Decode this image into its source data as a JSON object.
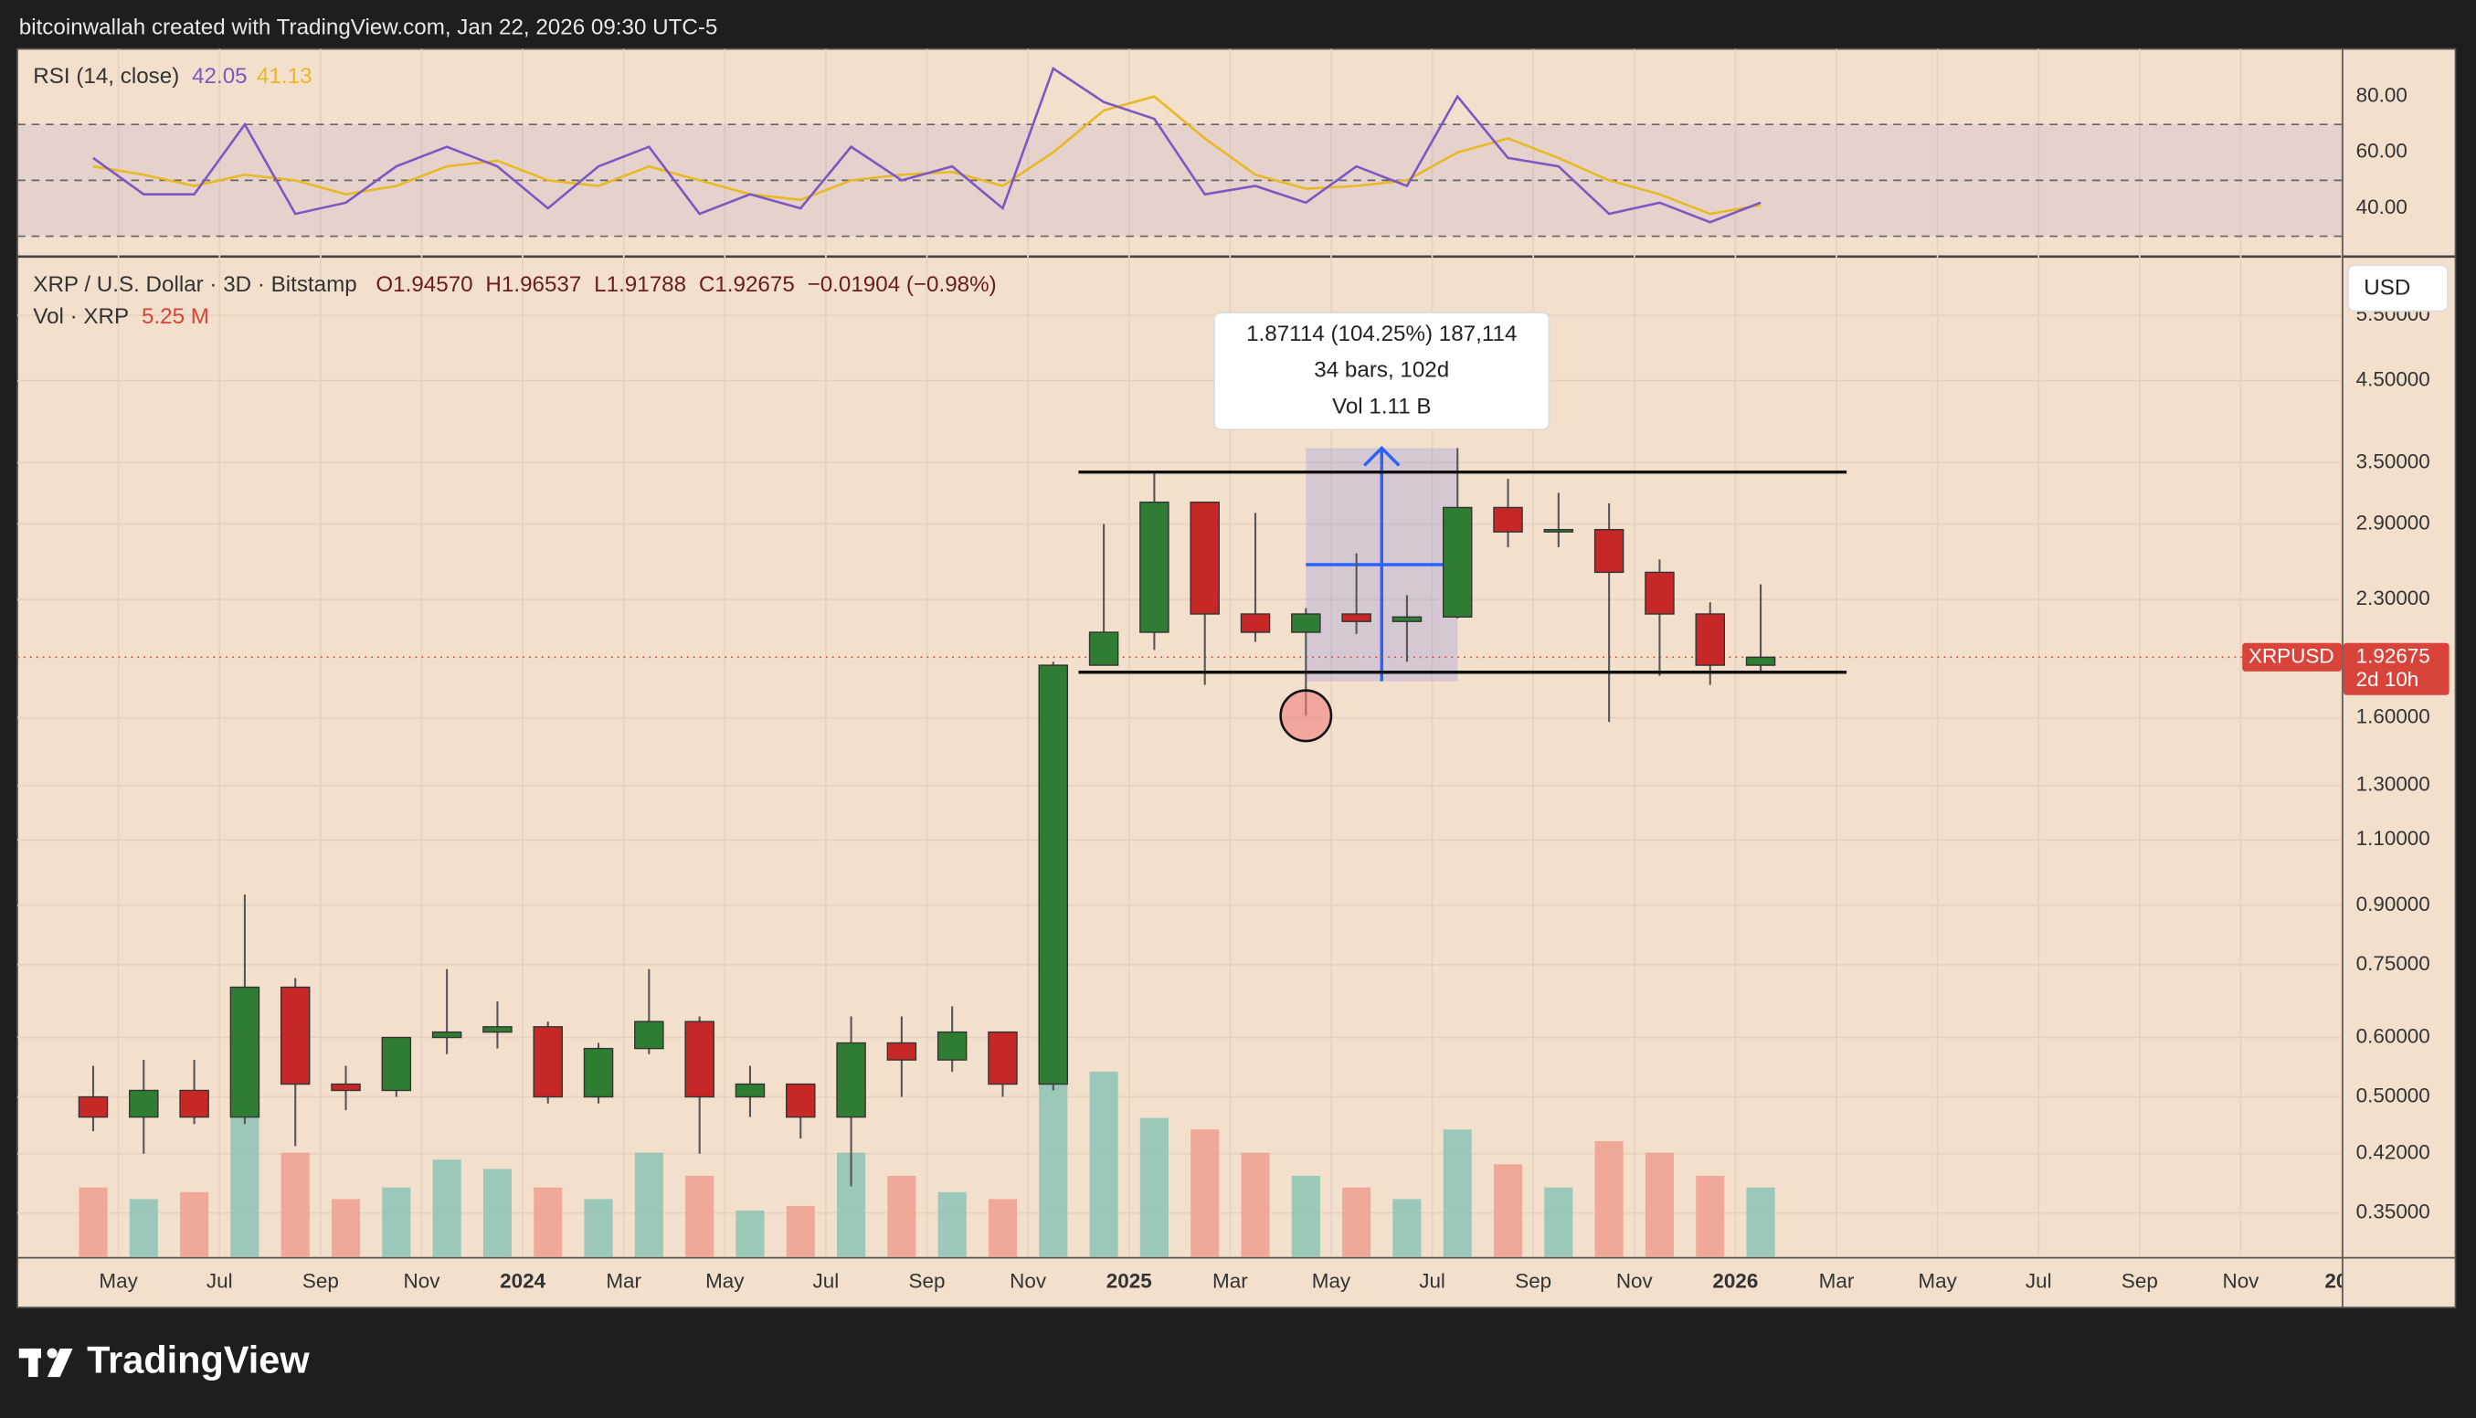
{
  "header": {
    "text": "bitcoinwallah created with TradingView.com, Jan 22, 2026 09:30 UTC-5"
  },
  "footer": {
    "brand": "TradingView"
  },
  "chart_data": [
    {
      "type": "candlestick",
      "title": "XRP / U.S. Dollar · 3D · Bitstamp",
      "ohlc_legend": [
        "O1.94570",
        "H1.96537",
        "L1.91788",
        "C1.92675",
        "−0.01904 (−0.98%)"
      ],
      "volume_label": "Vol · XRP",
      "volume_value": "5.25 M",
      "currency": "USD",
      "symbol": "XRPUSD",
      "last_price": {
        "value": 1.92675,
        "label": "1.92675"
      },
      "countdown": "2d 10h",
      "log_scale": true,
      "grid": true,
      "up_color": "#2e7d32",
      "down_color": "#c62828",
      "volume_up_color": "#8cc4b4",
      "volume_down_color": "#f0a08e",
      "x": [
        "2023-04",
        "2023-05",
        "2023-06",
        "2023-07",
        "2023-08",
        "2023-09",
        "2023-10",
        "2023-11",
        "2023-12",
        "2024-01",
        "2024-02",
        "2024-03",
        "2024-04",
        "2024-05",
        "2024-06",
        "2024-07",
        "2024-08",
        "2024-09",
        "2024-10",
        "2024-11",
        "2024-12",
        "2025-01",
        "2025-02",
        "2025-03",
        "2025-04",
        "2025-05",
        "2025-06",
        "2025-07",
        "2025-08",
        "2025-09",
        "2025-10",
        "2025-11",
        "2025-12",
        "2026-01"
      ],
      "open": [
        0.5,
        0.47,
        0.51,
        0.47,
        0.7,
        0.52,
        0.51,
        0.6,
        0.61,
        0.62,
        0.5,
        0.58,
        0.63,
        0.5,
        0.52,
        0.47,
        0.59,
        0.56,
        0.61,
        0.52,
        1.88,
        2.08,
        3.1,
        2.2,
        2.08,
        2.2,
        2.15,
        2.18,
        3.05,
        2.83,
        2.85,
        2.5,
        2.2,
        1.88
      ],
      "high": [
        0.55,
        0.56,
        0.56,
        0.93,
        0.72,
        0.55,
        0.6,
        0.74,
        0.67,
        0.63,
        0.59,
        0.74,
        0.64,
        0.55,
        0.52,
        0.64,
        0.64,
        0.66,
        0.61,
        1.9,
        2.9,
        3.4,
        3.1,
        3.0,
        2.24,
        2.65,
        2.33,
        3.66,
        3.33,
        3.19,
        3.09,
        2.6,
        2.28,
        2.41
      ],
      "low": [
        0.45,
        0.42,
        0.46,
        0.46,
        0.43,
        0.48,
        0.5,
        0.57,
        0.58,
        0.49,
        0.49,
        0.57,
        0.42,
        0.47,
        0.44,
        0.38,
        0.5,
        0.54,
        0.5,
        0.51,
        1.88,
        1.97,
        1.77,
        2.02,
        1.61,
        2.07,
        1.9,
        2.17,
        2.7,
        2.7,
        1.58,
        1.82,
        1.77,
        1.84
      ],
      "close": [
        0.47,
        0.51,
        0.47,
        0.7,
        0.52,
        0.51,
        0.6,
        0.61,
        0.62,
        0.5,
        0.58,
        0.63,
        0.5,
        0.52,
        0.47,
        0.59,
        0.56,
        0.61,
        0.52,
        1.88,
        2.08,
        3.1,
        2.2,
        2.08,
        2.2,
        2.15,
        2.18,
        3.05,
        2.83,
        2.85,
        2.5,
        2.2,
        1.88,
        1.92675
      ],
      "volume": [
        300,
        250,
        280,
        700,
        450,
        250,
        300,
        420,
        380,
        300,
        250,
        450,
        350,
        200,
        220,
        450,
        350,
        280,
        250,
        950,
        800,
        600,
        550,
        450,
        350,
        300,
        250,
        550,
        400,
        300,
        500,
        450,
        350,
        300
      ],
      "volume_ylim": [
        0,
        1200
      ],
      "xlim": [
        "2023-03",
        "2027-01"
      ],
      "xticks": [
        {
          "value": "2023-05",
          "label": "May"
        },
        {
          "value": "2023-07",
          "label": "Jul"
        },
        {
          "value": "2023-09",
          "label": "Sep"
        },
        {
          "value": "2023-11",
          "label": "Nov"
        },
        {
          "value": "2024-01",
          "label": "2024"
        },
        {
          "value": "2024-03",
          "label": "Mar"
        },
        {
          "value": "2024-05",
          "label": "May"
        },
        {
          "value": "2024-07",
          "label": "Jul"
        },
        {
          "value": "2024-09",
          "label": "Sep"
        },
        {
          "value": "2024-11",
          "label": "Nov"
        },
        {
          "value": "2025-01",
          "label": "2025"
        },
        {
          "value": "2025-03",
          "label": "Mar"
        },
        {
          "value": "2025-05",
          "label": "May"
        },
        {
          "value": "2025-07",
          "label": "Jul"
        },
        {
          "value": "2025-09",
          "label": "Sep"
        },
        {
          "value": "2025-11",
          "label": "Nov"
        },
        {
          "value": "2026-01",
          "label": "2026"
        },
        {
          "value": "2026-03",
          "label": "Mar"
        },
        {
          "value": "2026-05",
          "label": "May"
        },
        {
          "value": "2026-07",
          "label": "Jul"
        },
        {
          "value": "2026-09",
          "label": "Sep"
        },
        {
          "value": "2026-11",
          "label": "Nov"
        },
        {
          "value": "2027-01",
          "label": "202"
        }
      ],
      "ylim": [
        0.306,
        6.57
      ],
      "yticks": [
        {
          "value": 5.5,
          "label": "5.50000"
        },
        {
          "value": 4.5,
          "label": "4.50000"
        },
        {
          "value": 3.5,
          "label": "3.50000"
        },
        {
          "value": 2.9,
          "label": "2.90000"
        },
        {
          "value": 2.3,
          "label": "2.30000"
        },
        {
          "value": 1.6,
          "label": "1.60000"
        },
        {
          "value": 1.3,
          "label": "1.30000"
        },
        {
          "value": 1.1,
          "label": "1.10000"
        },
        {
          "value": 0.9,
          "label": "0.90000"
        },
        {
          "value": 0.75,
          "label": "0.75000"
        },
        {
          "value": 0.6,
          "label": "0.60000"
        },
        {
          "value": 0.5,
          "label": "0.50000"
        },
        {
          "value": 0.42,
          "label": "0.42000"
        },
        {
          "value": 0.35,
          "label": "0.35000"
        }
      ],
      "levels": [
        {
          "value": 3.4,
          "from": "2024-12",
          "to": "2026-03"
        },
        {
          "value": 1.84,
          "from": "2024-12",
          "to": "2026-03"
        }
      ],
      "measure": {
        "from": "2025-04",
        "to": "2025-07",
        "low": 1.79,
        "high": 3.66,
        "lines": [
          "1.87114 (104.25%) 187,114",
          "34 bars, 102d",
          "Vol 1.11 B"
        ]
      },
      "marker": {
        "x": "2025-04",
        "value": 1.61
      }
    },
    {
      "type": "line",
      "title": "RSI (14, close)",
      "x": [
        "2023-04",
        "2023-05",
        "2023-06",
        "2023-07",
        "2023-08",
        "2023-09",
        "2023-10",
        "2023-11",
        "2023-12",
        "2024-01",
        "2024-02",
        "2024-03",
        "2024-04",
        "2024-05",
        "2024-06",
        "2024-07",
        "2024-08",
        "2024-09",
        "2024-10",
        "2024-11",
        "2024-12",
        "2025-01",
        "2025-02",
        "2025-03",
        "2025-04",
        "2025-05",
        "2025-06",
        "2025-07",
        "2025-08",
        "2025-09",
        "2025-10",
        "2025-11",
        "2025-12",
        "2026-01"
      ],
      "series": [
        {
          "color": "#7e57c2",
          "values": [
            58,
            45,
            45,
            70,
            38,
            42,
            55,
            62,
            55,
            40,
            55,
            62,
            38,
            45,
            40,
            62,
            50,
            55,
            40,
            90,
            78,
            72,
            45,
            48,
            42,
            55,
            48,
            80,
            58,
            55,
            38,
            42,
            35,
            42.05
          ]
        },
        {
          "color": "#e8b923",
          "values": [
            55,
            52,
            48,
            52,
            50,
            45,
            48,
            55,
            57,
            50,
            48,
            55,
            50,
            45,
            43,
            50,
            52,
            53,
            48,
            60,
            75,
            80,
            65,
            52,
            47,
            48,
            50,
            60,
            65,
            58,
            50,
            45,
            38,
            41.13
          ]
        }
      ],
      "ylim": [
        23,
        97
      ],
      "band": [
        30,
        70
      ],
      "levels": [
        30,
        50,
        70
      ],
      "yticks": [
        {
          "value": 40,
          "label": "40.00"
        },
        {
          "value": 60,
          "label": "60.00"
        },
        {
          "value": 80,
          "label": "80.00"
        }
      ]
    }
  ]
}
